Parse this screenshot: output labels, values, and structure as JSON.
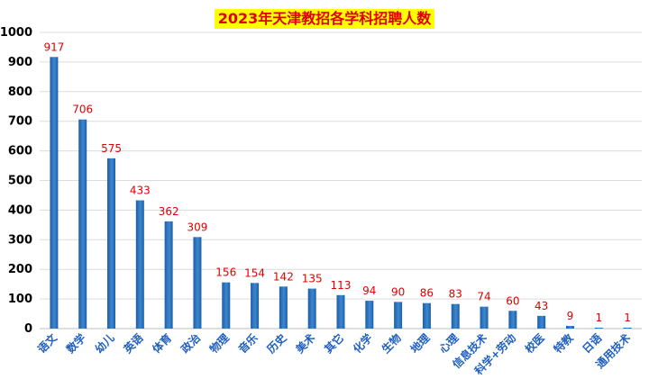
{
  "chart_data": {
    "type": "bar",
    "title": "2023年天津教招各学科招聘人数",
    "categories": [
      "语文",
      "数学",
      "幼儿",
      "英语",
      "体育",
      "政治",
      "物理",
      "音乐",
      "历史",
      "美术",
      "其它",
      "化学",
      "生物",
      "地理",
      "心理",
      "信息技术",
      "科学+劳动",
      "校医",
      "特教",
      "日语",
      "通用技术"
    ],
    "values": [
      917,
      706,
      575,
      433,
      362,
      309,
      156,
      154,
      142,
      135,
      113,
      94,
      90,
      86,
      83,
      74,
      60,
      43,
      9,
      1,
      1
    ],
    "ylim": [
      0,
      1000
    ],
    "yticks": [
      0,
      100,
      200,
      300,
      400,
      500,
      600,
      700,
      800,
      900,
      1000
    ],
    "grid": true,
    "legend": "none",
    "colors": {
      "bar": "#1a5fa8",
      "bar_light": "#3f86d0",
      "data_label": "#e00000",
      "xtick": "#1f5fbf",
      "title_bg": "#ffff00",
      "title_text": "#e00000"
    }
  }
}
